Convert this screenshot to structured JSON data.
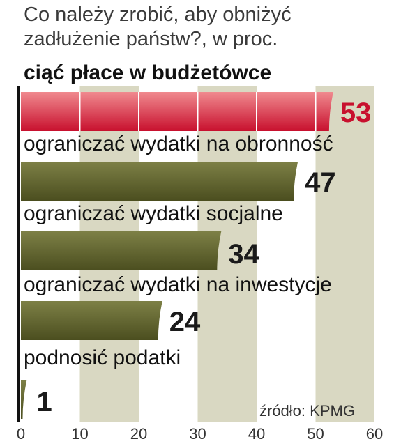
{
  "chart_data": {
    "type": "bar",
    "orientation": "horizontal",
    "title": "Co należy zrobić, aby obniżyć zadłużenie państw?, w proc.",
    "title_lines": [
      "Co należy zrobić, aby obniżyć",
      "zadłużenie państw?, w proc."
    ],
    "categories": [
      "ciąć płace w budżetówce",
      "ograniczać wydatki na obronność",
      "ograniczać wydatki socjalne",
      "ograniczać wydatki na inwestycje",
      "podnosić podatki"
    ],
    "values": [
      53,
      47,
      34,
      24,
      1
    ],
    "value_labels": [
      "53",
      "47",
      "34",
      "24",
      "1"
    ],
    "xlim": [
      0,
      60
    ],
    "xticks": [
      0,
      10,
      20,
      30,
      40,
      50,
      60
    ],
    "xtick_labels": [
      "0",
      "10",
      "20",
      "30",
      "40",
      "50",
      "60"
    ],
    "grid": "vertical",
    "source": "źródło: KPMG",
    "colors": {
      "highlight": "#d9313d",
      "highlight_text": "#c8102e",
      "bar": "#66692f",
      "stripe": "#d9d8c2",
      "axis": "#111111"
    }
  }
}
